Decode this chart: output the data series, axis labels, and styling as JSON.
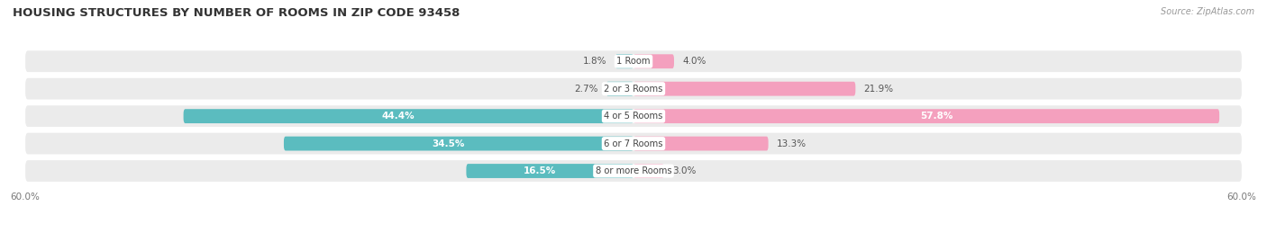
{
  "title": "HOUSING STRUCTURES BY NUMBER OF ROOMS IN ZIP CODE 93458",
  "source": "Source: ZipAtlas.com",
  "categories": [
    "1 Room",
    "2 or 3 Rooms",
    "4 or 5 Rooms",
    "6 or 7 Rooms",
    "8 or more Rooms"
  ],
  "owner_values": [
    1.8,
    2.7,
    44.4,
    34.5,
    16.5
  ],
  "renter_values": [
    4.0,
    21.9,
    57.8,
    13.3,
    3.0
  ],
  "owner_color": "#5bbcbf",
  "renter_color": "#f4a0be",
  "background_color": "#ffffff",
  "row_bg_color": "#ebebeb",
  "row_separator_color": "#ffffff",
  "xlim": 60.0,
  "title_fontsize": 9.5,
  "label_fontsize": 7.5,
  "category_fontsize": 7.2,
  "source_fontsize": 7
}
